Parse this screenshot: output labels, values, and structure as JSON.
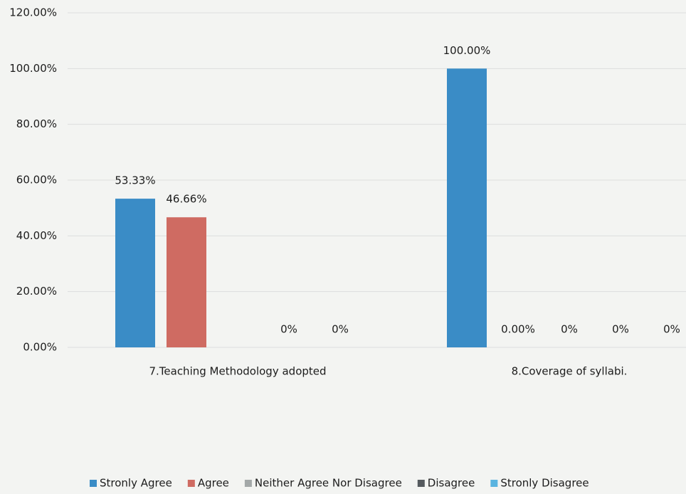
{
  "chart_data": {
    "type": "bar",
    "categories": [
      "7.Teaching Methodology adopted",
      "8.Coverage of syllabi."
    ],
    "series": [
      {
        "name": "Stronly Agree",
        "color": "#3a8cc6",
        "values": [
          53.33,
          100
        ],
        "value_labels": [
          "53.33%",
          "100.00%"
        ]
      },
      {
        "name": "Agree",
        "color": "#cf6b62",
        "values": [
          46.66,
          0
        ],
        "value_labels": [
          "46.66%",
          "0.00%"
        ]
      },
      {
        "name": "Neither Agree Nor Disagree",
        "color": "#a3a8a8",
        "values": [
          null,
          0
        ],
        "value_labels": [
          null,
          "0%"
        ]
      },
      {
        "name": "Disagree",
        "color": "#555a5e",
        "values": [
          0,
          0
        ],
        "value_labels": [
          "0%",
          "0%"
        ]
      },
      {
        "name": "Stronly Disagree",
        "color": "#5ab4e0",
        "values": [
          0,
          0
        ],
        "value_labels": [
          "0%",
          "0%"
        ]
      }
    ],
    "ylim": [
      0,
      120
    ],
    "yticks": [
      {
        "value": 0,
        "label": "0.00%"
      },
      {
        "value": 20,
        "label": "20.00%"
      },
      {
        "value": 40,
        "label": "40.00%"
      },
      {
        "value": 60,
        "label": "60.00%"
      },
      {
        "value": 80,
        "label": "80.00%"
      },
      {
        "value": 100,
        "label": "100.00%"
      },
      {
        "value": 120,
        "label": "120.00%"
      }
    ],
    "grid": true,
    "legend": "bottom"
  }
}
